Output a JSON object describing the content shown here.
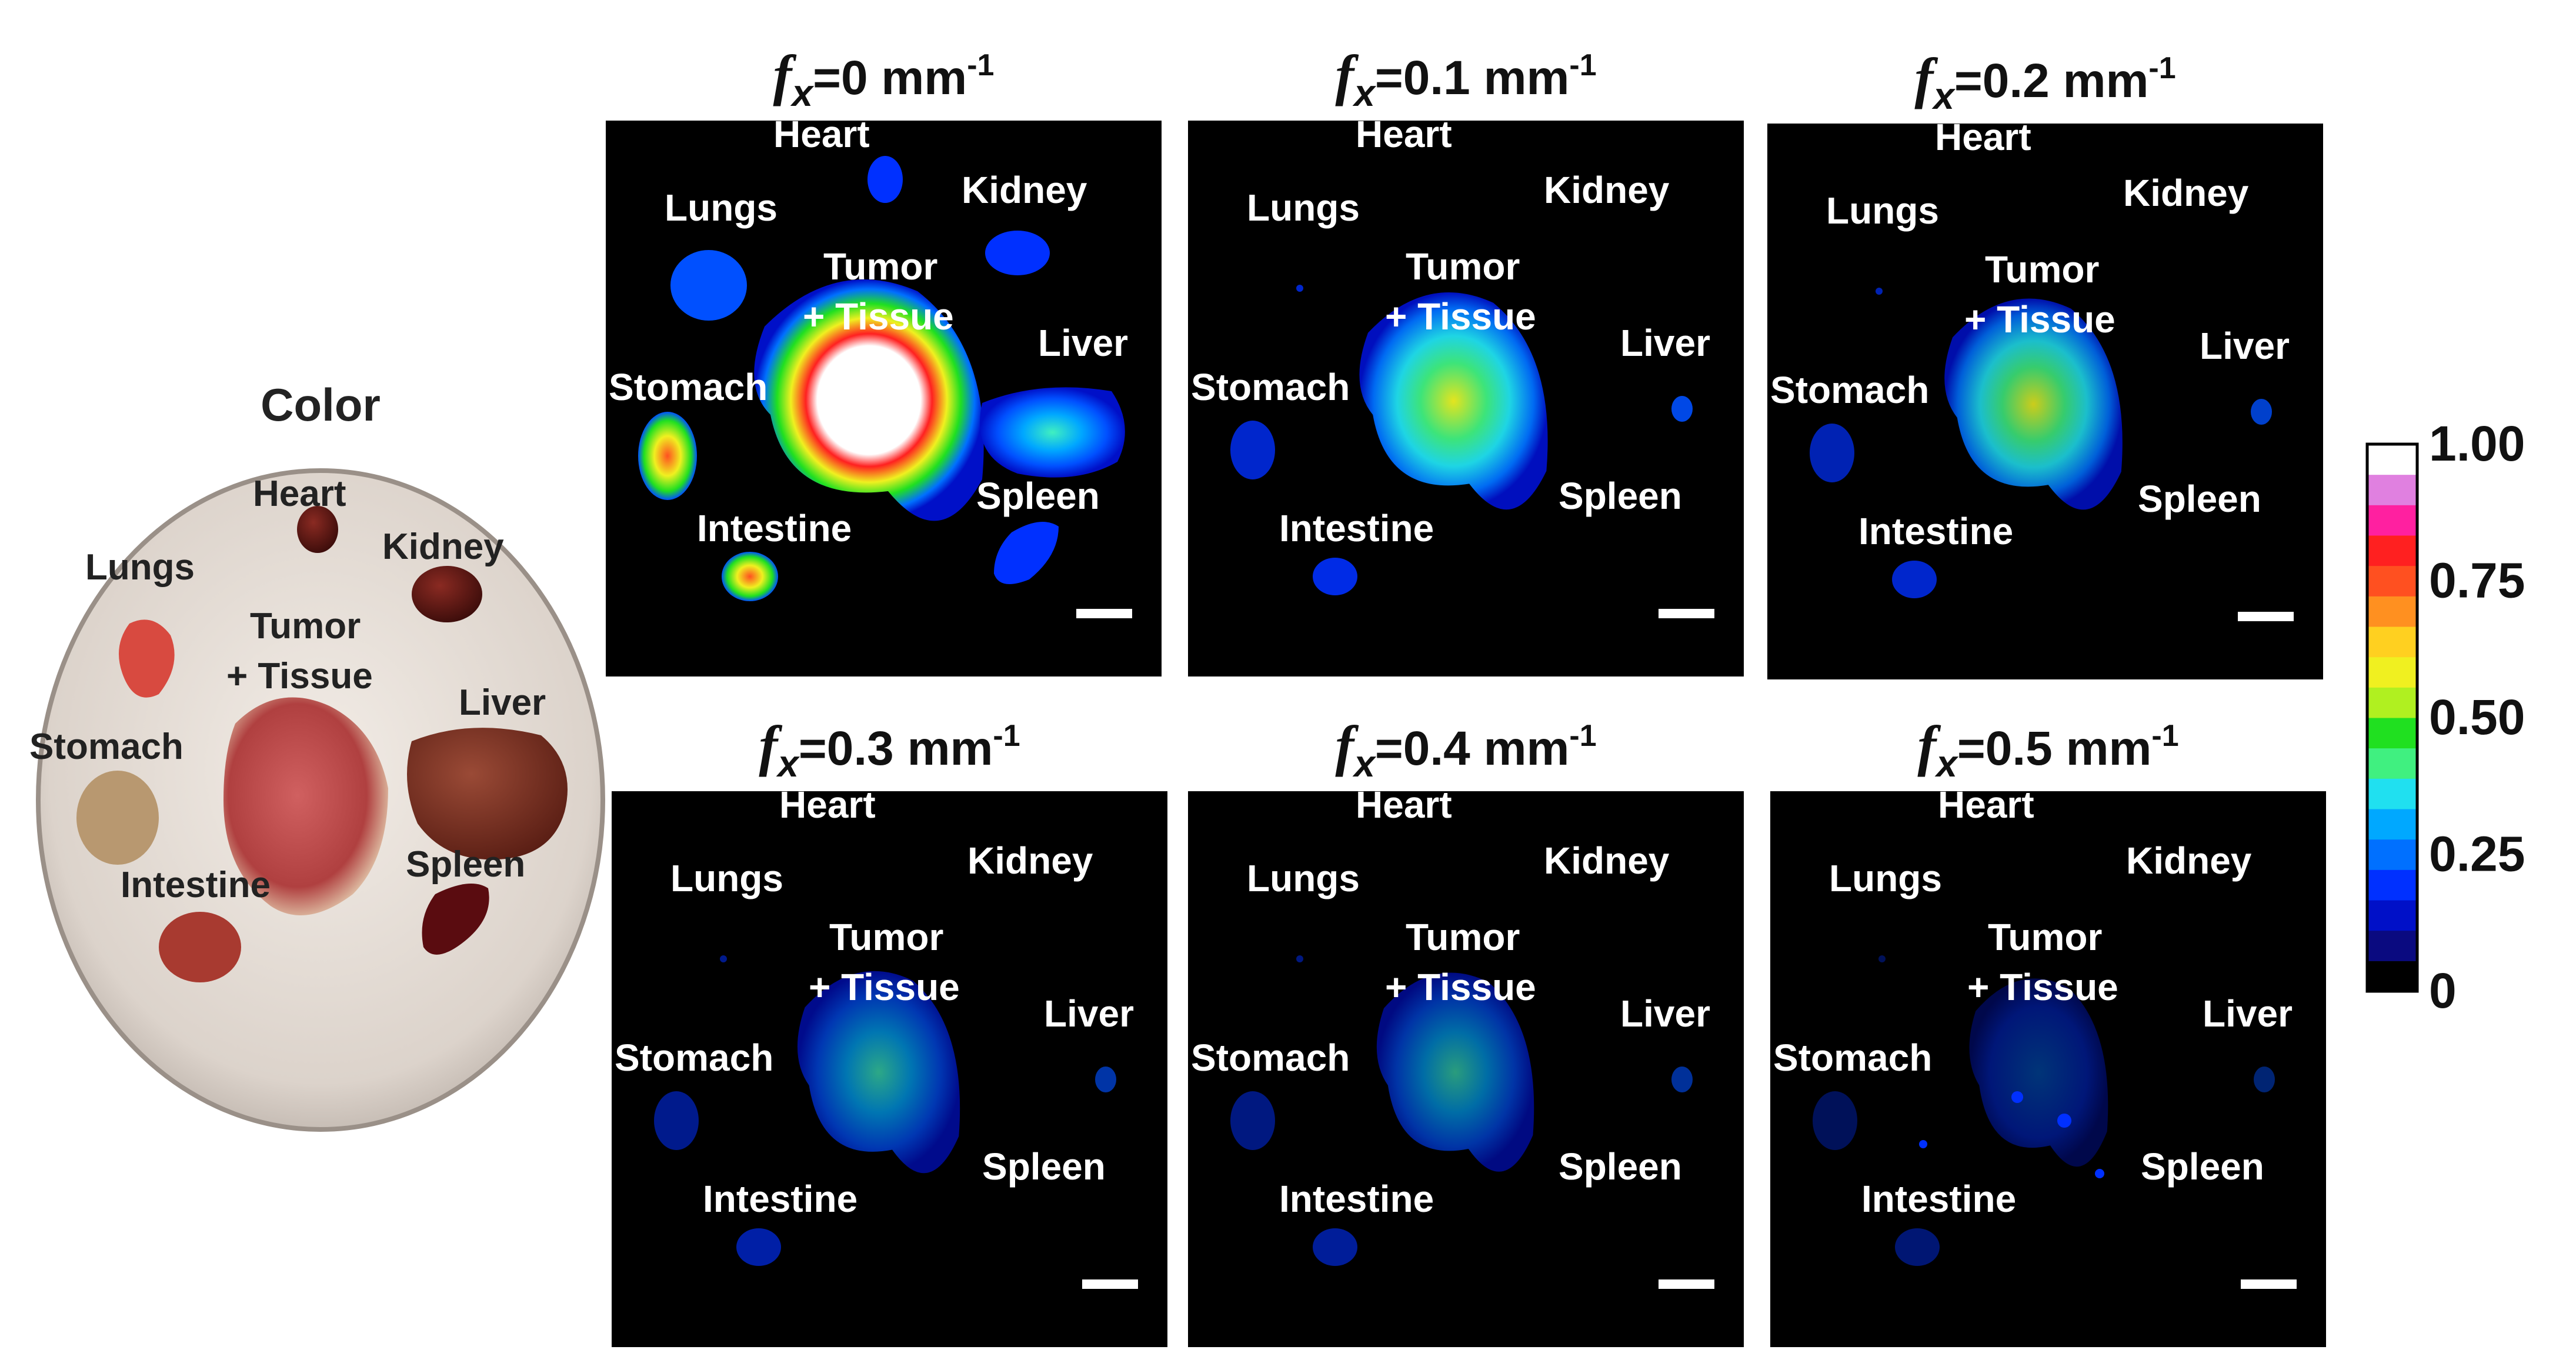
{
  "color_panel": {
    "title": "Color",
    "labels": {
      "heart": "Heart",
      "kidney": "Kidney",
      "lungs": "Lungs",
      "tumor": "Tumor",
      "tissue": "+ Tissue",
      "liver": "Liver",
      "stomach": "Stomach",
      "spleen": "Spleen",
      "intestine": "Intestine"
    }
  },
  "panels": [
    {
      "fx": "=0 mm",
      "exp": "-1",
      "intensity": 1.0
    },
    {
      "fx": "=0.1 mm",
      "exp": "-1",
      "intensity": 0.6
    },
    {
      "fx": "=0.2 mm",
      "exp": "-1",
      "intensity": 0.5
    },
    {
      "fx": "=0.3 mm",
      "exp": "-1",
      "intensity": 0.35
    },
    {
      "fx": "=0.4 mm",
      "exp": "-1",
      "intensity": 0.3
    },
    {
      "fx": "=0.5 mm",
      "exp": "-1",
      "intensity": 0.12
    }
  ],
  "panel_symbol": "f",
  "panel_subscript": "x",
  "organ_labels": {
    "heart": "Heart",
    "kidney": "Kidney",
    "lungs": "Lungs",
    "tumor": "Tumor",
    "tissue": "+ Tissue",
    "liver": "Liver",
    "stomach": "Stomach",
    "spleen": "Spleen",
    "intestine": "Intestine"
  },
  "colorbar": {
    "ticks": [
      "1.00",
      "0.75",
      "0.50",
      "0.25",
      "0"
    ],
    "colors": [
      "#000000",
      "#0a0a80",
      "#0010c8",
      "#0030ff",
      "#0070ff",
      "#00a8ff",
      "#20e0f0",
      "#40f080",
      "#20e020",
      "#b0f020",
      "#f0f020",
      "#ffd020",
      "#ff9020",
      "#ff5020",
      "#ff2020",
      "#ff20a0",
      "#e080e0",
      "#ffffff"
    ]
  }
}
